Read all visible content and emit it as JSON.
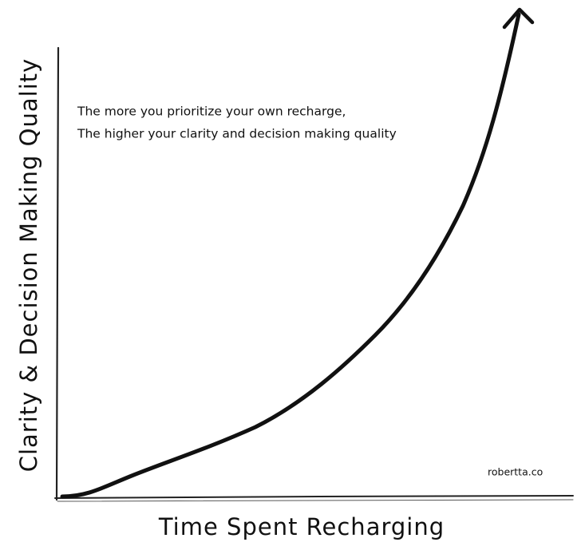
{
  "y_axis_label": "Clarity & Decision Making Quality",
  "x_axis_label": "Time Spent Recharging",
  "annotation": {
    "lines": [
      "The more you prioritize your own recharge,",
      "The higher your clarity and decision making quality"
    ]
  },
  "watermark": "robertta.co"
}
